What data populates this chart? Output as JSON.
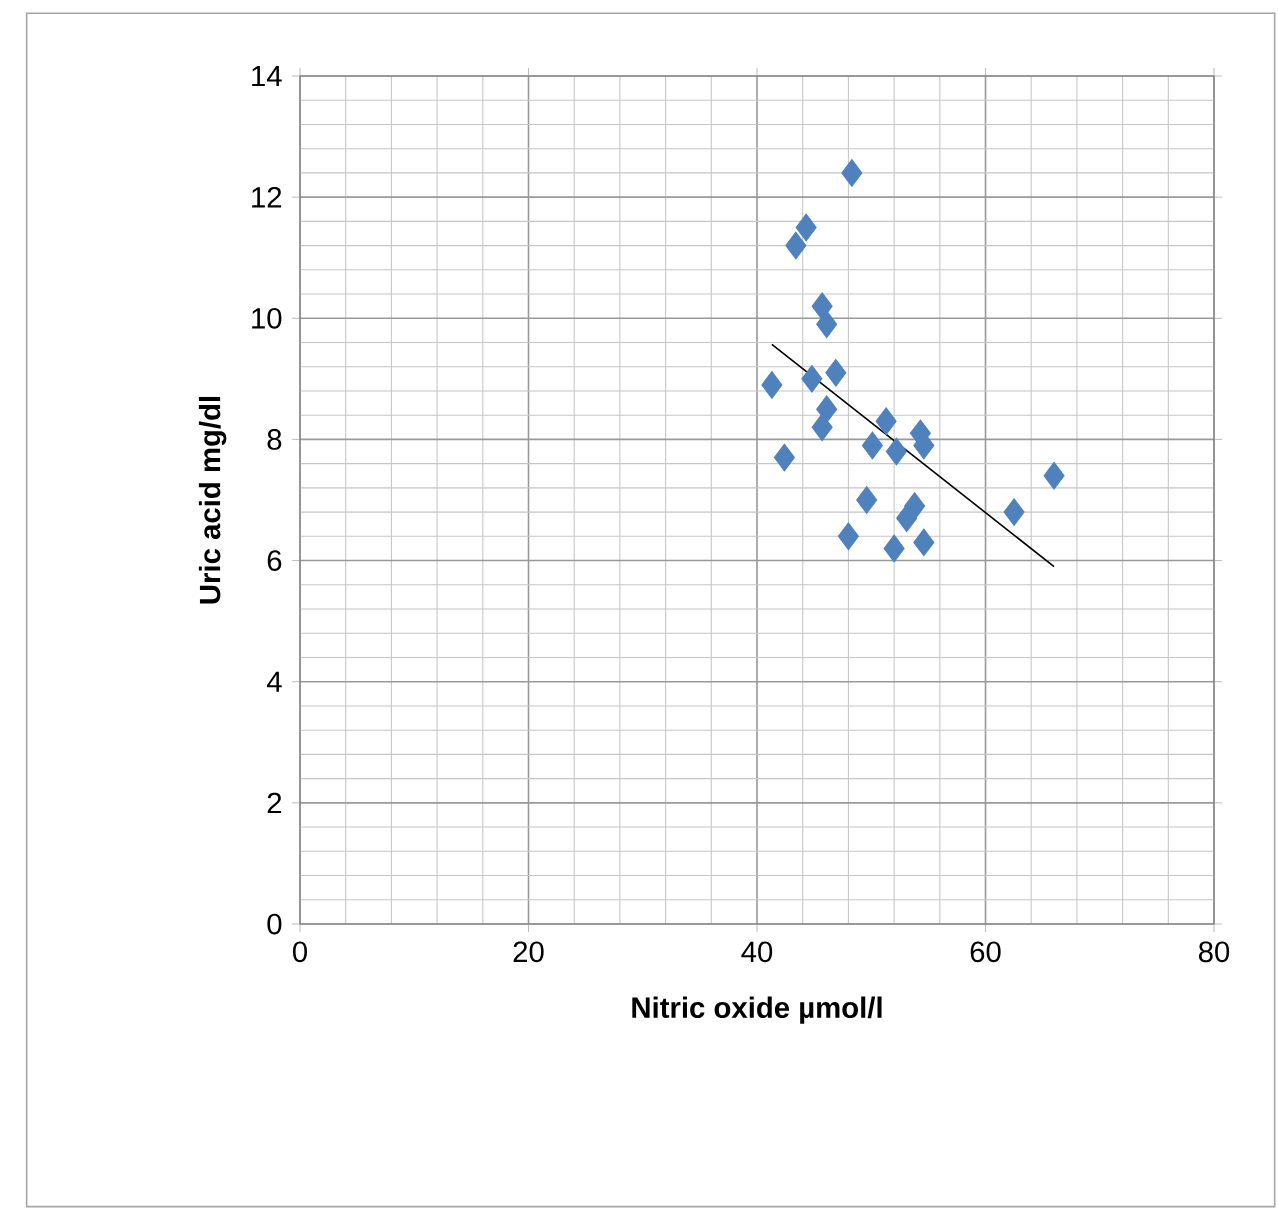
{
  "chart_data": {
    "type": "scatter",
    "xlabel": "Nitric oxide µmol/l",
    "ylabel": "Uric acid mg/dl",
    "xlim": [
      0,
      80
    ],
    "ylim": [
      0,
      14
    ],
    "xticks": [
      0,
      20,
      40,
      60,
      80
    ],
    "yticks": [
      0,
      2,
      4,
      6,
      8,
      10,
      12,
      14
    ],
    "grid": true,
    "marker": "diamond",
    "series": [
      {
        "color": "#4f81bd",
        "x": [
          48.3,
          44.3,
          43.4,
          45.7,
          46.1,
          41.3,
          44.8,
          46.9,
          46.1,
          45.7,
          42.4,
          51.3,
          50.1,
          52.2,
          54.3,
          54.6,
          49.6,
          53.8,
          53.1,
          48.0,
          52.0,
          54.6,
          62.5,
          66.0
        ],
        "values": [
          12.4,
          11.5,
          11.2,
          10.2,
          9.9,
          8.9,
          9.0,
          9.1,
          8.5,
          8.2,
          7.7,
          8.3,
          7.9,
          7.8,
          8.1,
          7.9,
          7.0,
          6.9,
          6.7,
          6.4,
          6.2,
          6.3,
          6.8,
          7.4
        ]
      },
      {
        "type": "line",
        "color": "#000000",
        "marker": "none",
        "x": [
          41.3,
          66.0
        ],
        "values": [
          9.57,
          5.9
        ]
      }
    ]
  }
}
